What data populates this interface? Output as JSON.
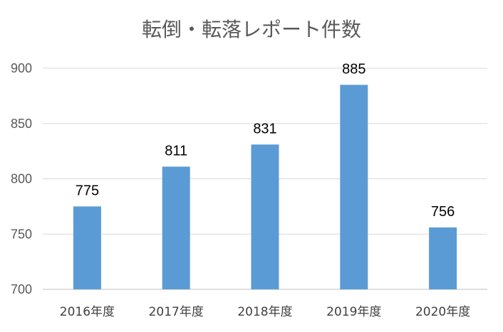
{
  "chart_data": {
    "type": "bar",
    "title": "転倒・転落レポート件数",
    "categories": [
      "2016年度",
      "2017年度",
      "2018年度",
      "2019年度",
      "2020年度"
    ],
    "values": [
      775,
      811,
      831,
      885,
      756
    ],
    "data_labels": [
      "775",
      "811",
      "831",
      "885",
      "756"
    ],
    "xlabel": "",
    "ylabel": "",
    "ylim": [
      700,
      900
    ],
    "yticks": [
      700,
      750,
      800,
      850,
      900
    ],
    "ytick_labels": [
      "700",
      "750",
      "800",
      "850",
      "900"
    ],
    "grid": true,
    "legend": "none",
    "bar_color": "#5b9bd5"
  }
}
